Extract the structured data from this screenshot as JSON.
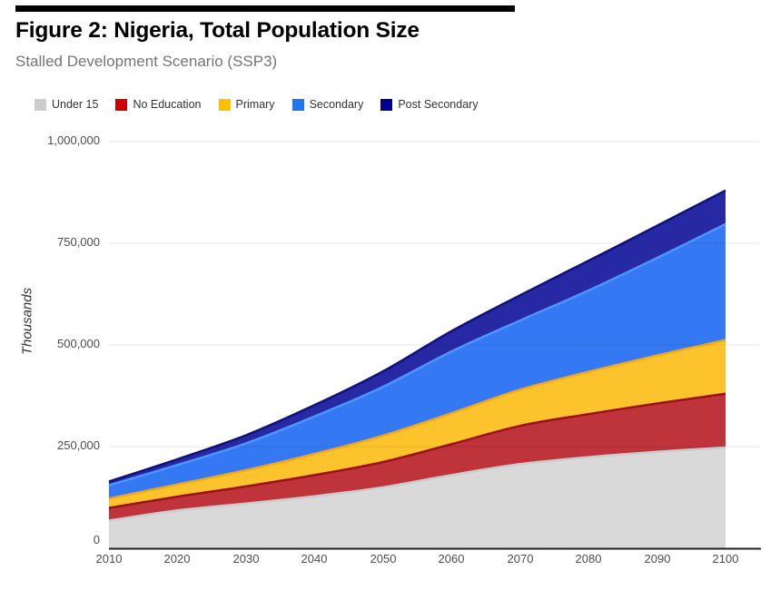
{
  "figure": {
    "title": "Figure 2: Nigeria, Total Population Size",
    "subtitle": "Stalled Development Scenario (SSP3)"
  },
  "chart_data": {
    "type": "area",
    "stacked": true,
    "title": "Figure 2: Nigeria, Total Population Size",
    "subtitle": "Stalled Development Scenario (SSP3)",
    "x": [
      2010,
      2020,
      2030,
      2040,
      2050,
      2060,
      2070,
      2080,
      2090,
      2100
    ],
    "x_tick_labels": [
      "2010",
      "2020",
      "2030",
      "2040",
      "2050",
      "2060",
      "2070",
      "2080",
      "2090",
      "2100"
    ],
    "y_axis": {
      "label": "Thousands",
      "tick_values": [
        0,
        250000,
        500000,
        750000,
        1000000
      ],
      "tick_labels": [
        "0",
        "250,000",
        "500,000",
        "750,000",
        "1,000,000"
      ],
      "range": [
        0,
        1000000
      ]
    },
    "grid": true,
    "legend_position": "top",
    "series": [
      {
        "name": "Under 15",
        "color": "#D9D9D9",
        "edge": "#CBCBCB",
        "legend_color": "#CCCCCC",
        "values": [
          68000,
          93000,
          110000,
          128000,
          150000,
          180000,
          207000,
          224000,
          237000,
          248000
        ]
      },
      {
        "name": "No Education",
        "color": "#BF343B",
        "edge": "#9B1118",
        "legend_color": "#CC0000",
        "values": [
          31000,
          34000,
          42000,
          52000,
          62000,
          76000,
          94000,
          106000,
          119000,
          132000
        ]
      },
      {
        "name": "Primary",
        "color": "#FCC32D",
        "edge": "#F0A71E",
        "legend_color": "#FFC000",
        "values": [
          23000,
          30000,
          40000,
          52000,
          65000,
          76000,
          89000,
          104000,
          118000,
          132000
        ]
      },
      {
        "name": "Secondary",
        "color": "#3479F3",
        "edge": "#4E95FF",
        "legend_color": "#1E78F0",
        "values": [
          33000,
          48000,
          66000,
          92000,
          120000,
          152000,
          170000,
          200000,
          240000,
          285000
        ]
      },
      {
        "name": "Post Secondary",
        "color": "#2728A4",
        "edge": "#10107B",
        "legend_color": "#00008F",
        "values": [
          9000,
          14000,
          20000,
          28000,
          38000,
          50000,
          62000,
          73000,
          79000,
          83000
        ]
      }
    ],
    "totals": [
      164000,
      219000,
      278000,
      352000,
      435000,
      534000,
      622000,
      707000,
      793000,
      880000
    ],
    "colors": {
      "gridline": "rgba(0,0,0,0.09)",
      "axis_line": "#212121",
      "tick_text": "#4d4d4d",
      "subtitle_text": "#757575"
    }
  }
}
